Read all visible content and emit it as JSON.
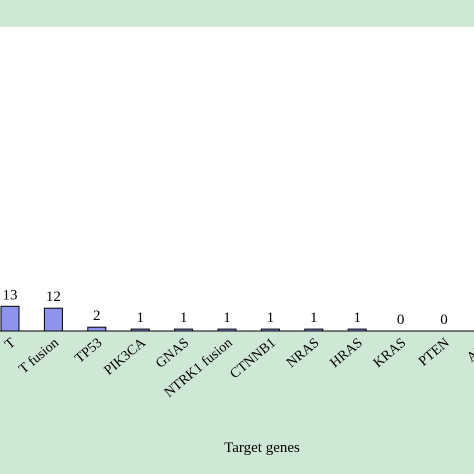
{
  "colors": {
    "header_band": "#cfe7d5",
    "axis_band": "#cfe7d5",
    "bar_fill": "#8f95ee",
    "bar_stroke": "#000000"
  },
  "chart_data": {
    "type": "bar",
    "title": "",
    "xlabel": "Target genes",
    "ylabel": "",
    "categories": [
      "T",
      "T fusion",
      "TP53",
      "PIK3CA",
      "GNAS",
      "NTRK1 fusion",
      "CTNNB1",
      "NRAS",
      "HRAS",
      "KRAS",
      "PTEN",
      "AKT"
    ],
    "values": [
      13,
      12,
      2,
      1,
      1,
      1,
      1,
      1,
      1,
      0,
      0,
      0
    ],
    "data_labels": [
      "13",
      "12",
      "2",
      "1",
      "1",
      "1",
      "1",
      "1",
      "1",
      "0",
      "0",
      ""
    ],
    "grid": false,
    "legend": "none"
  }
}
